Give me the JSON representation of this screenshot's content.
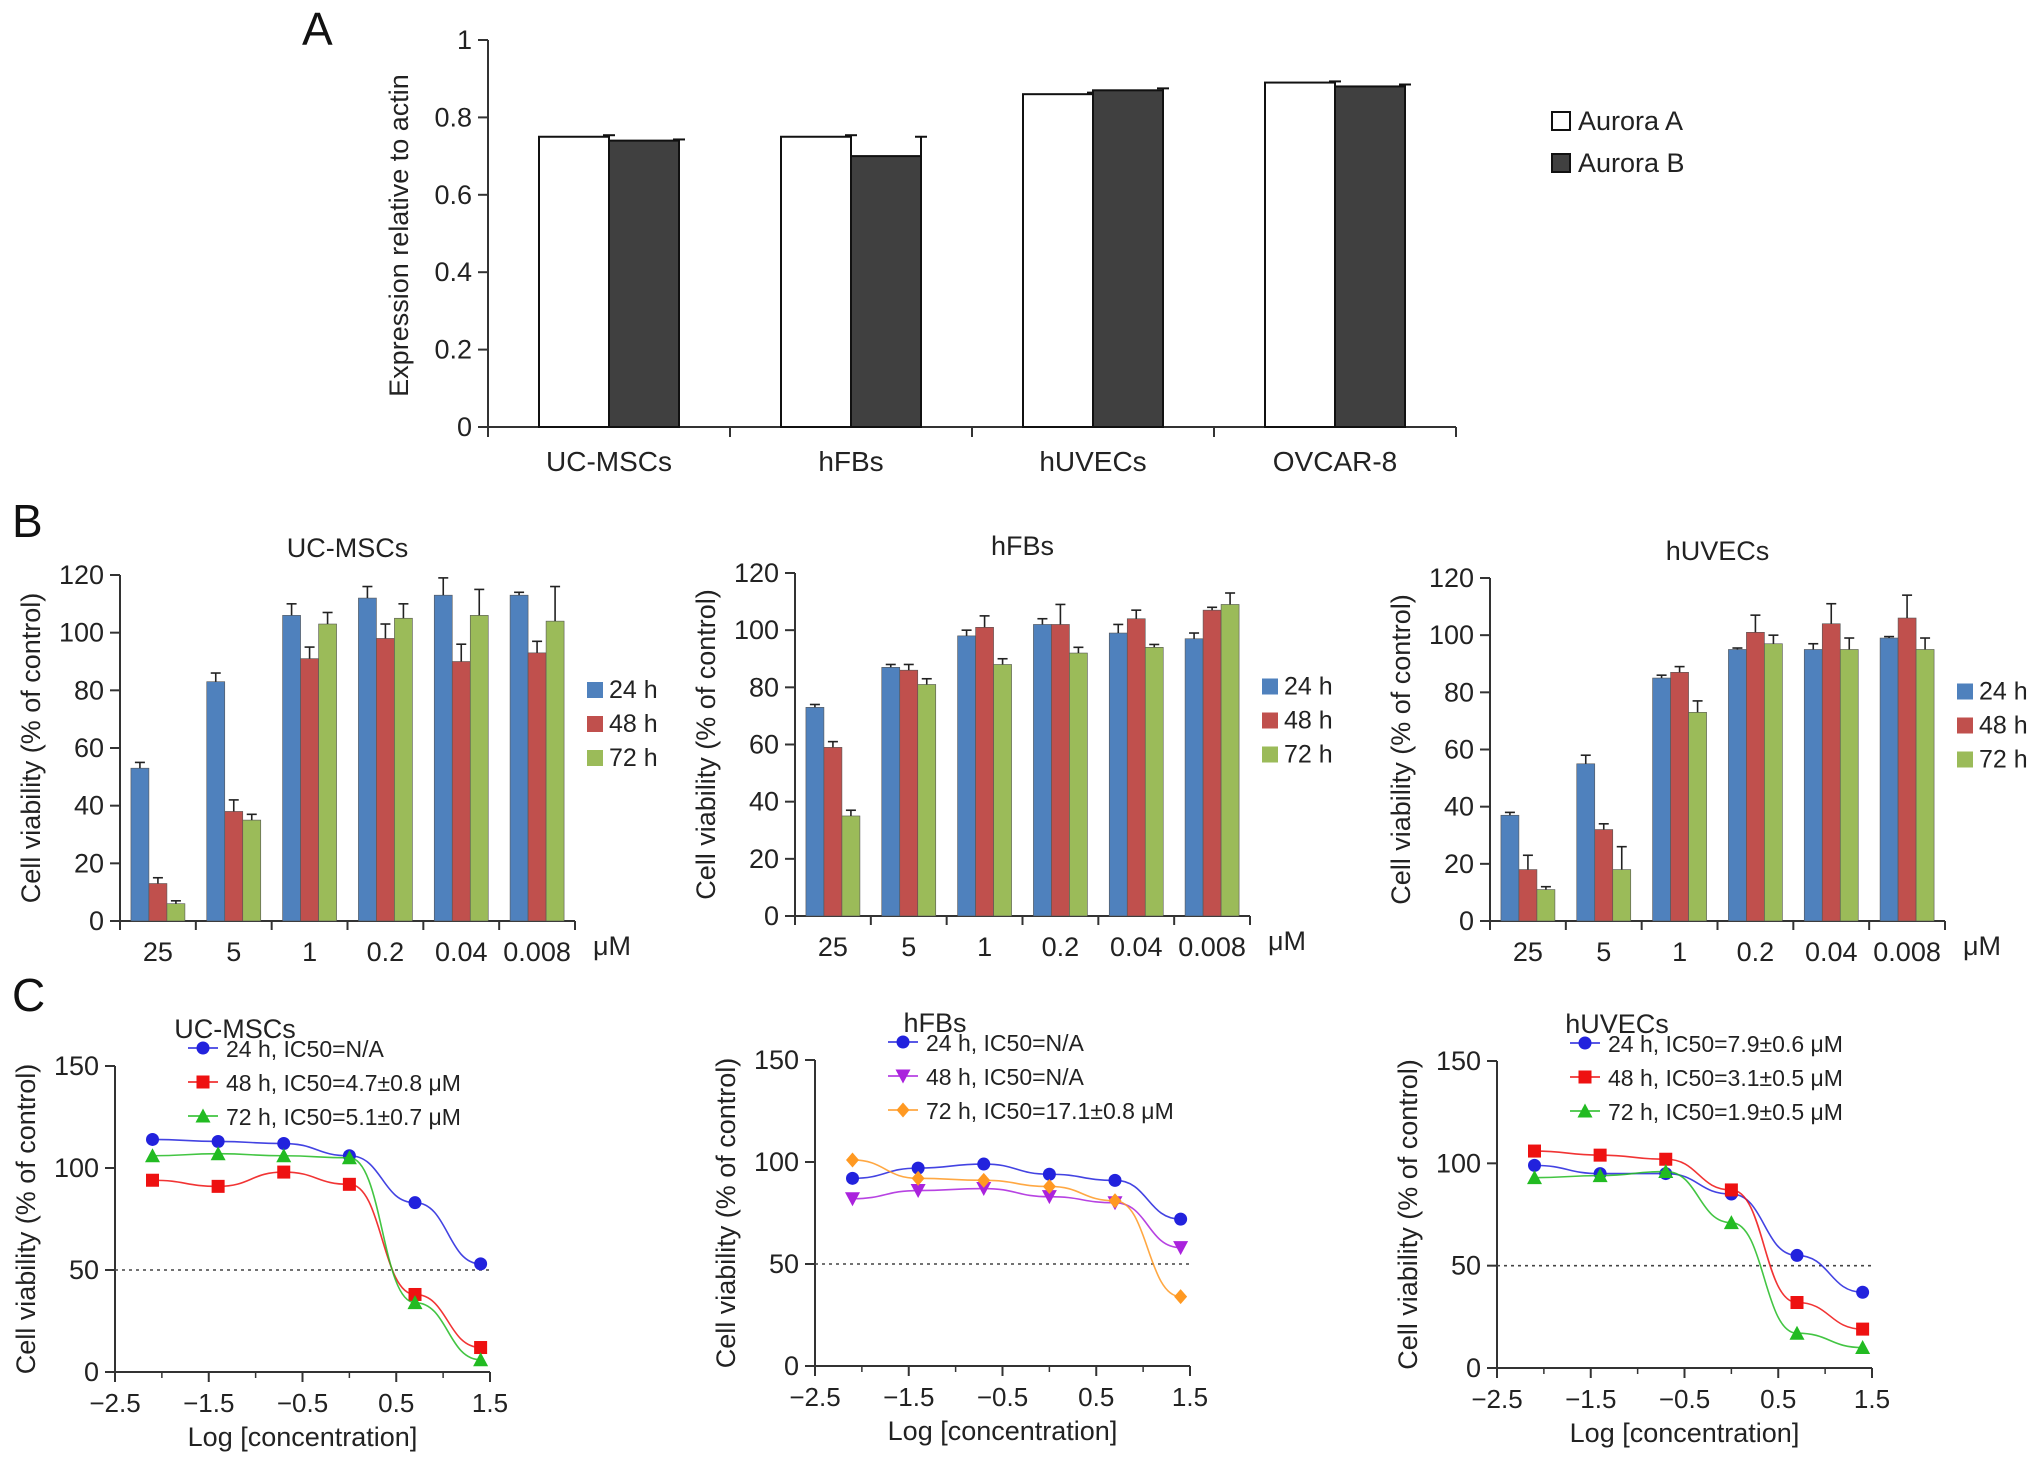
{
  "panels": {
    "A": "A",
    "B": "B",
    "C": "C"
  },
  "colors": {
    "aurora_a": "#ffffff",
    "aurora_b": "#404040",
    "bar24": "#4f81bd",
    "bar48": "#c0504d",
    "bar72": "#9bbb59",
    "line24": "#2222dd",
    "line48": "#ee1111",
    "line72": "#22bb22",
    "line48_hfb": "#aa22dd",
    "line72_hfb": "#ff9922"
  },
  "chart_data": [
    {
      "id": "A",
      "type": "bar",
      "title": "",
      "ylabel": "Expression relative to actin",
      "xlabel": "",
      "categories": [
        "UC-MSCs",
        "hFBs",
        "hUVECs",
        "OVCAR-8"
      ],
      "yticks": [
        "0",
        "0.2",
        "0.4",
        "0.6",
        "0.8",
        "1"
      ],
      "ylim": [
        0,
        1
      ],
      "series": [
        {
          "name": "Aurora A",
          "values": [
            0.75,
            0.75,
            0.86,
            0.89
          ],
          "errors": [
            0.004,
            0.004,
            0.004,
            0.003
          ]
        },
        {
          "name": "Aurora B",
          "values": [
            0.74,
            0.7,
            0.87,
            0.88
          ],
          "errors": [
            0.003,
            0.05,
            0.005,
            0.005
          ]
        }
      ],
      "legend": "right"
    },
    {
      "id": "B1",
      "type": "bar",
      "title": "UC-MSCs",
      "ylabel": "Cell viability (% of control)",
      "unit": "μM",
      "categories": [
        "25",
        "5",
        "1",
        "0.2",
        "0.04",
        "0.008"
      ],
      "yticks": [
        "0",
        "20",
        "40",
        "60",
        "80",
        "100",
        "120"
      ],
      "ylim": [
        0,
        120
      ],
      "series": [
        {
          "name": "24 h",
          "values": [
            53,
            83,
            106,
            112,
            113,
            113
          ],
          "errors": [
            2,
            3,
            4,
            4,
            6,
            1
          ]
        },
        {
          "name": "48 h",
          "values": [
            13,
            38,
            91,
            98,
            90,
            93
          ],
          "errors": [
            2,
            4,
            4,
            5,
            6,
            4
          ]
        },
        {
          "name": "72 h",
          "values": [
            6,
            35,
            103,
            105,
            106,
            104
          ],
          "errors": [
            1,
            2,
            4,
            5,
            9,
            12
          ]
        }
      ],
      "legend": "right"
    },
    {
      "id": "B2",
      "type": "bar",
      "title": "hFBs",
      "ylabel": "Cell viability (% of control)",
      "unit": "μM",
      "categories": [
        "25",
        "5",
        "1",
        "0.2",
        "0.04",
        "0.008"
      ],
      "yticks": [
        "0",
        "20",
        "40",
        "60",
        "80",
        "100",
        "120"
      ],
      "ylim": [
        0,
        120
      ],
      "series": [
        {
          "name": "24 h",
          "values": [
            73,
            87,
            98,
            102,
            99,
            97
          ],
          "errors": [
            1,
            1,
            2,
            2,
            3,
            2
          ]
        },
        {
          "name": "48 h",
          "values": [
            59,
            86,
            101,
            102,
            104,
            107
          ],
          "errors": [
            2,
            2,
            4,
            7,
            3,
            1
          ]
        },
        {
          "name": "72 h",
          "values": [
            35,
            81,
            88,
            92,
            94,
            109
          ],
          "errors": [
            2,
            2,
            2,
            2,
            1,
            4
          ]
        }
      ],
      "legend": "right"
    },
    {
      "id": "B3",
      "type": "bar",
      "title": "hUVECs",
      "ylabel": "Cell viability (% of control)",
      "unit": "μM",
      "categories": [
        "25",
        "5",
        "1",
        "0.2",
        "0.04",
        "0.008"
      ],
      "yticks": [
        "0",
        "20",
        "40",
        "60",
        "80",
        "100",
        "120"
      ],
      "ylim": [
        0,
        120
      ],
      "series": [
        {
          "name": "24 h",
          "values": [
            37,
            55,
            85,
            95,
            95,
            99
          ],
          "errors": [
            1,
            3,
            1,
            0.5,
            2,
            0.5
          ]
        },
        {
          "name": "48 h",
          "values": [
            18,
            32,
            87,
            101,
            104,
            106
          ],
          "errors": [
            5,
            2,
            2,
            6,
            7,
            8
          ]
        },
        {
          "name": "72 h",
          "values": [
            11,
            18,
            73,
            97,
            95,
            95
          ],
          "errors": [
            1,
            8,
            4,
            3,
            4,
            4
          ]
        }
      ],
      "legend": "right"
    },
    {
      "id": "C1",
      "type": "line",
      "title": "UC-MSCs",
      "xlabel": "Log [concentration]",
      "ylabel": "Cell viability (% of control)",
      "xticks": [
        "−2.5",
        "−1.5",
        "−0.5",
        "0.5",
        "1.5"
      ],
      "xtick_values": [
        -2.5,
        -1.5,
        -0.5,
        0.5,
        1.5
      ],
      "yticks": [
        "0",
        "50",
        "100",
        "150"
      ],
      "ylim": [
        0,
        150
      ],
      "xlim": [
        -2.5,
        1.5
      ],
      "reference_line": 50,
      "x": [
        -2.1,
        -1.4,
        -0.7,
        0.0,
        0.7,
        1.4
      ],
      "series": [
        {
          "name": "24 h, IC50=N/A",
          "values": [
            114,
            113,
            112,
            106,
            83,
            53
          ],
          "marker": "circle",
          "color_key": "line24"
        },
        {
          "name": "48 h, IC50=4.7±0.8 μM",
          "values": [
            94,
            91,
            98,
            92,
            38,
            12
          ],
          "marker": "square",
          "color_key": "line48"
        },
        {
          "name": "72 h, IC50=5.1±0.7 μM",
          "values": [
            106,
            107,
            106,
            105,
            34,
            6
          ],
          "marker": "triangle",
          "color_key": "line72"
        }
      ],
      "legend": "top-right"
    },
    {
      "id": "C2",
      "type": "line",
      "title": "hFBs",
      "xlabel": "Log [concentration]",
      "ylabel": "Cell viability (% of control)",
      "xticks": [
        "−2.5",
        "−1.5",
        "−0.5",
        "0.5",
        "1.5"
      ],
      "xtick_values": [
        -2.5,
        -1.5,
        -0.5,
        0.5,
        1.5
      ],
      "yticks": [
        "0",
        "50",
        "100",
        "150"
      ],
      "ylim": [
        0,
        150
      ],
      "xlim": [
        -2.5,
        1.5
      ],
      "reference_line": 50,
      "x": [
        -2.1,
        -1.4,
        -0.7,
        0.0,
        0.7,
        1.4
      ],
      "series": [
        {
          "name": "24 h, IC50=N/A",
          "values": [
            92,
            97,
            99,
            94,
            91,
            72
          ],
          "marker": "circle",
          "color_key": "line24"
        },
        {
          "name": "48 h, IC50=N/A",
          "values": [
            82,
            86,
            87,
            83,
            80,
            58
          ],
          "marker": "triangle-down",
          "color_key": "line48_hfb"
        },
        {
          "name": "72 h, IC50=17.1±0.8 μM",
          "values": [
            101,
            92,
            91,
            88,
            81,
            34
          ],
          "marker": "diamond",
          "color_key": "line72_hfb"
        }
      ],
      "legend": "top-right"
    },
    {
      "id": "C3",
      "type": "line",
      "title": "hUVECs",
      "xlabel": "Log [concentration]",
      "ylabel": "Cell viability (% of control)",
      "xticks": [
        "−2.5",
        "−1.5",
        "−0.5",
        "0.5",
        "1.5"
      ],
      "xtick_values": [
        -2.5,
        -1.5,
        -0.5,
        0.5,
        1.5
      ],
      "yticks": [
        "0",
        "50",
        "100",
        "150"
      ],
      "ylim": [
        0,
        150
      ],
      "xlim": [
        -2.5,
        1.5
      ],
      "reference_line": 50,
      "x": [
        -2.1,
        -1.4,
        -0.7,
        0.0,
        0.7,
        1.4
      ],
      "series": [
        {
          "name": "24 h, IC50=7.9±0.6 μM",
          "values": [
            99,
            95,
            95,
            85,
            55,
            37
          ],
          "marker": "circle",
          "color_key": "line24"
        },
        {
          "name": "48 h, IC50=3.1±0.5 μM",
          "values": [
            106,
            104,
            102,
            87,
            32,
            19
          ],
          "marker": "square",
          "color_key": "line48"
        },
        {
          "name": "72 h, IC50=1.9±0.5 μM",
          "values": [
            93,
            94,
            96,
            71,
            17,
            10
          ],
          "marker": "triangle",
          "color_key": "line72"
        }
      ],
      "legend": "top-right"
    }
  ]
}
